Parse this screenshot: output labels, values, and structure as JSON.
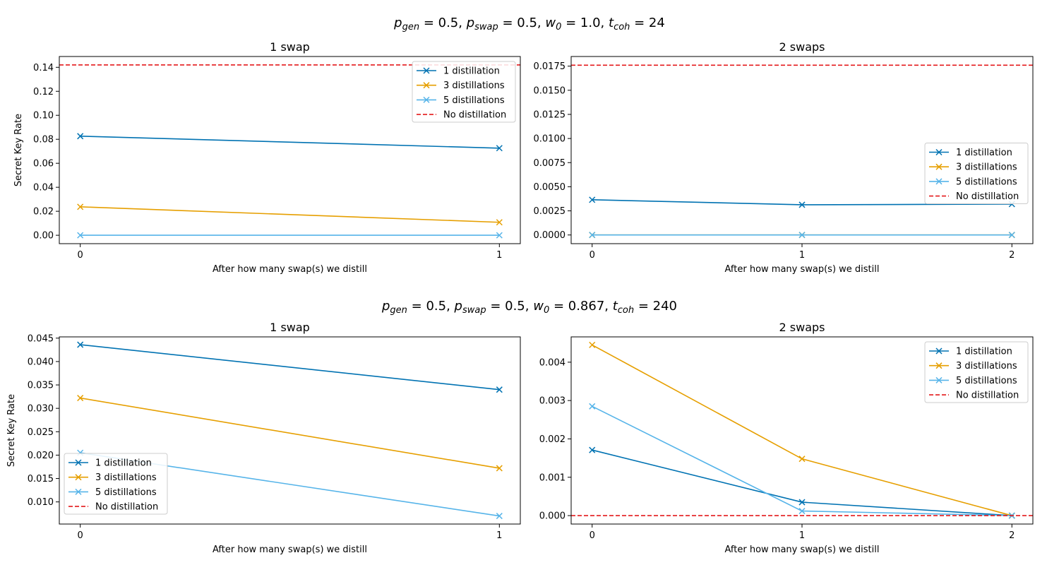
{
  "rows": [
    {
      "title": "p_gen = 0.5, p_swap = 0.5, w_0 = 1.0, t_coh = 24"
    },
    {
      "title": "p_gen = 0.5, p_swap = 0.5, w_0 = 0.867, t_coh = 240"
    }
  ],
  "row_titles_tex": [
    {
      "parts": [
        [
          "p",
          ""
        ],
        [
          "gen",
          "sub"
        ],
        [
          " = 0.5, ",
          ""
        ],
        [
          "p",
          ""
        ],
        [
          "swap",
          "sub"
        ],
        [
          " = 0.5, ",
          ""
        ],
        [
          "w",
          ""
        ],
        [
          "0",
          "sub"
        ],
        [
          " = 1.0, ",
          ""
        ],
        [
          "t",
          ""
        ],
        [
          "coh",
          "sub"
        ],
        [
          " = 24",
          ""
        ]
      ]
    },
    {
      "parts": [
        [
          "p",
          ""
        ],
        [
          "gen",
          "sub"
        ],
        [
          " = 0.5, ",
          ""
        ],
        [
          "p",
          ""
        ],
        [
          "swap",
          "sub"
        ],
        [
          " = 0.5, ",
          ""
        ],
        [
          "w",
          ""
        ],
        [
          "0",
          "sub"
        ],
        [
          " = 0.867, ",
          ""
        ],
        [
          "t",
          ""
        ],
        [
          "coh",
          "sub"
        ],
        [
          " = 240",
          ""
        ]
      ]
    }
  ],
  "colors": {
    "d1": "#0072b2",
    "d3": "#e69f00",
    "d5": "#56b4e9",
    "none": "#e41a1c"
  },
  "chart_data": [
    {
      "type": "line",
      "title": "1 swap",
      "xlabel": "After how many swap(s) we distill",
      "ylabel": "Secret Key Rate",
      "x": [
        0,
        1
      ],
      "ylim": [
        -0.007,
        0.149
      ],
      "yticks": [
        0.0,
        0.02,
        0.04,
        0.06,
        0.08,
        0.1,
        0.12,
        0.14
      ],
      "ytick_labels": [
        "0.00",
        "0.02",
        "0.04",
        "0.06",
        "0.08",
        "0.10",
        "0.12",
        "0.14"
      ],
      "legend": "top-right",
      "series": [
        {
          "name": "1 distillation",
          "color": "#0072b2",
          "values": [
            0.0826,
            0.0726
          ]
        },
        {
          "name": "3 distillations",
          "color": "#e69f00",
          "values": [
            0.0237,
            0.0108
          ]
        },
        {
          "name": "5 distillations",
          "color": "#56b4e9",
          "values": [
            0.0,
            0.0
          ]
        }
      ],
      "hline": {
        "name": "No distillation",
        "color": "#e41a1c",
        "value": 0.142
      }
    },
    {
      "type": "line",
      "title": "2 swaps",
      "xlabel": "After how many swap(s) we distill",
      "ylabel": "",
      "x": [
        0,
        1,
        2
      ],
      "ylim": [
        -0.0009,
        0.0185
      ],
      "yticks": [
        0.0,
        0.0025,
        0.005,
        0.0075,
        0.01,
        0.0125,
        0.015,
        0.0175
      ],
      "ytick_labels": [
        "0.0000",
        "0.0025",
        "0.0050",
        "0.0075",
        "0.0100",
        "0.0125",
        "0.0150",
        "0.0175"
      ],
      "legend": "center-right",
      "series": [
        {
          "name": "1 distillation",
          "color": "#0072b2",
          "values": [
            0.00365,
            0.00313,
            0.0032
          ]
        },
        {
          "name": "3 distillations",
          "color": "#e69f00",
          "values": [
            0.0,
            0.0,
            0.0
          ]
        },
        {
          "name": "5 distillations",
          "color": "#56b4e9",
          "values": [
            0.0,
            0.0,
            0.0
          ]
        }
      ],
      "hline": {
        "name": "No distillation",
        "color": "#e41a1c",
        "value": 0.0176
      }
    },
    {
      "type": "line",
      "title": "1 swap",
      "xlabel": "After how many swap(s) we distill",
      "ylabel": "Secret Key Rate",
      "x": [
        0,
        1
      ],
      "ylim": [
        0.00527,
        0.04527
      ],
      "yticks": [
        0.01,
        0.015,
        0.02,
        0.025,
        0.03,
        0.035,
        0.04,
        0.045
      ],
      "ytick_labels": [
        "0.010",
        "0.015",
        "0.020",
        "0.025",
        "0.030",
        "0.035",
        "0.040",
        "0.045"
      ],
      "legend": "bottom-left",
      "series": [
        {
          "name": "1 distillation",
          "color": "#0072b2",
          "values": [
            0.0436,
            0.034
          ]
        },
        {
          "name": "3 distillations",
          "color": "#e69f00",
          "values": [
            0.0322,
            0.0172
          ]
        },
        {
          "name": "5 distillations",
          "color": "#56b4e9",
          "values": [
            0.0205,
            0.007
          ]
        }
      ],
      "hline": {
        "name": "No distillation",
        "color": "#e41a1c",
        "value": 0.0454
      }
    },
    {
      "type": "line",
      "title": "2 swaps",
      "xlabel": "After how many swap(s) we distill",
      "ylabel": "",
      "x": [
        0,
        1,
        2
      ],
      "ylim": [
        -0.00022,
        0.00466
      ],
      "yticks": [
        0.0,
        0.001,
        0.002,
        0.003,
        0.004
      ],
      "ytick_labels": [
        "0.000",
        "0.001",
        "0.002",
        "0.003",
        "0.004"
      ],
      "legend": "top-right",
      "series": [
        {
          "name": "1 distillation",
          "color": "#0072b2",
          "values": [
            0.00171,
            0.00035,
            0.0
          ]
        },
        {
          "name": "3 distillations",
          "color": "#e69f00",
          "values": [
            0.00445,
            0.00148,
            0.0
          ]
        },
        {
          "name": "5 distillations",
          "color": "#56b4e9",
          "values": [
            0.00285,
            0.00012,
            0.0
          ]
        }
      ],
      "hline": {
        "name": "No distillation",
        "color": "#e41a1c",
        "value": 0.0
      }
    }
  ]
}
